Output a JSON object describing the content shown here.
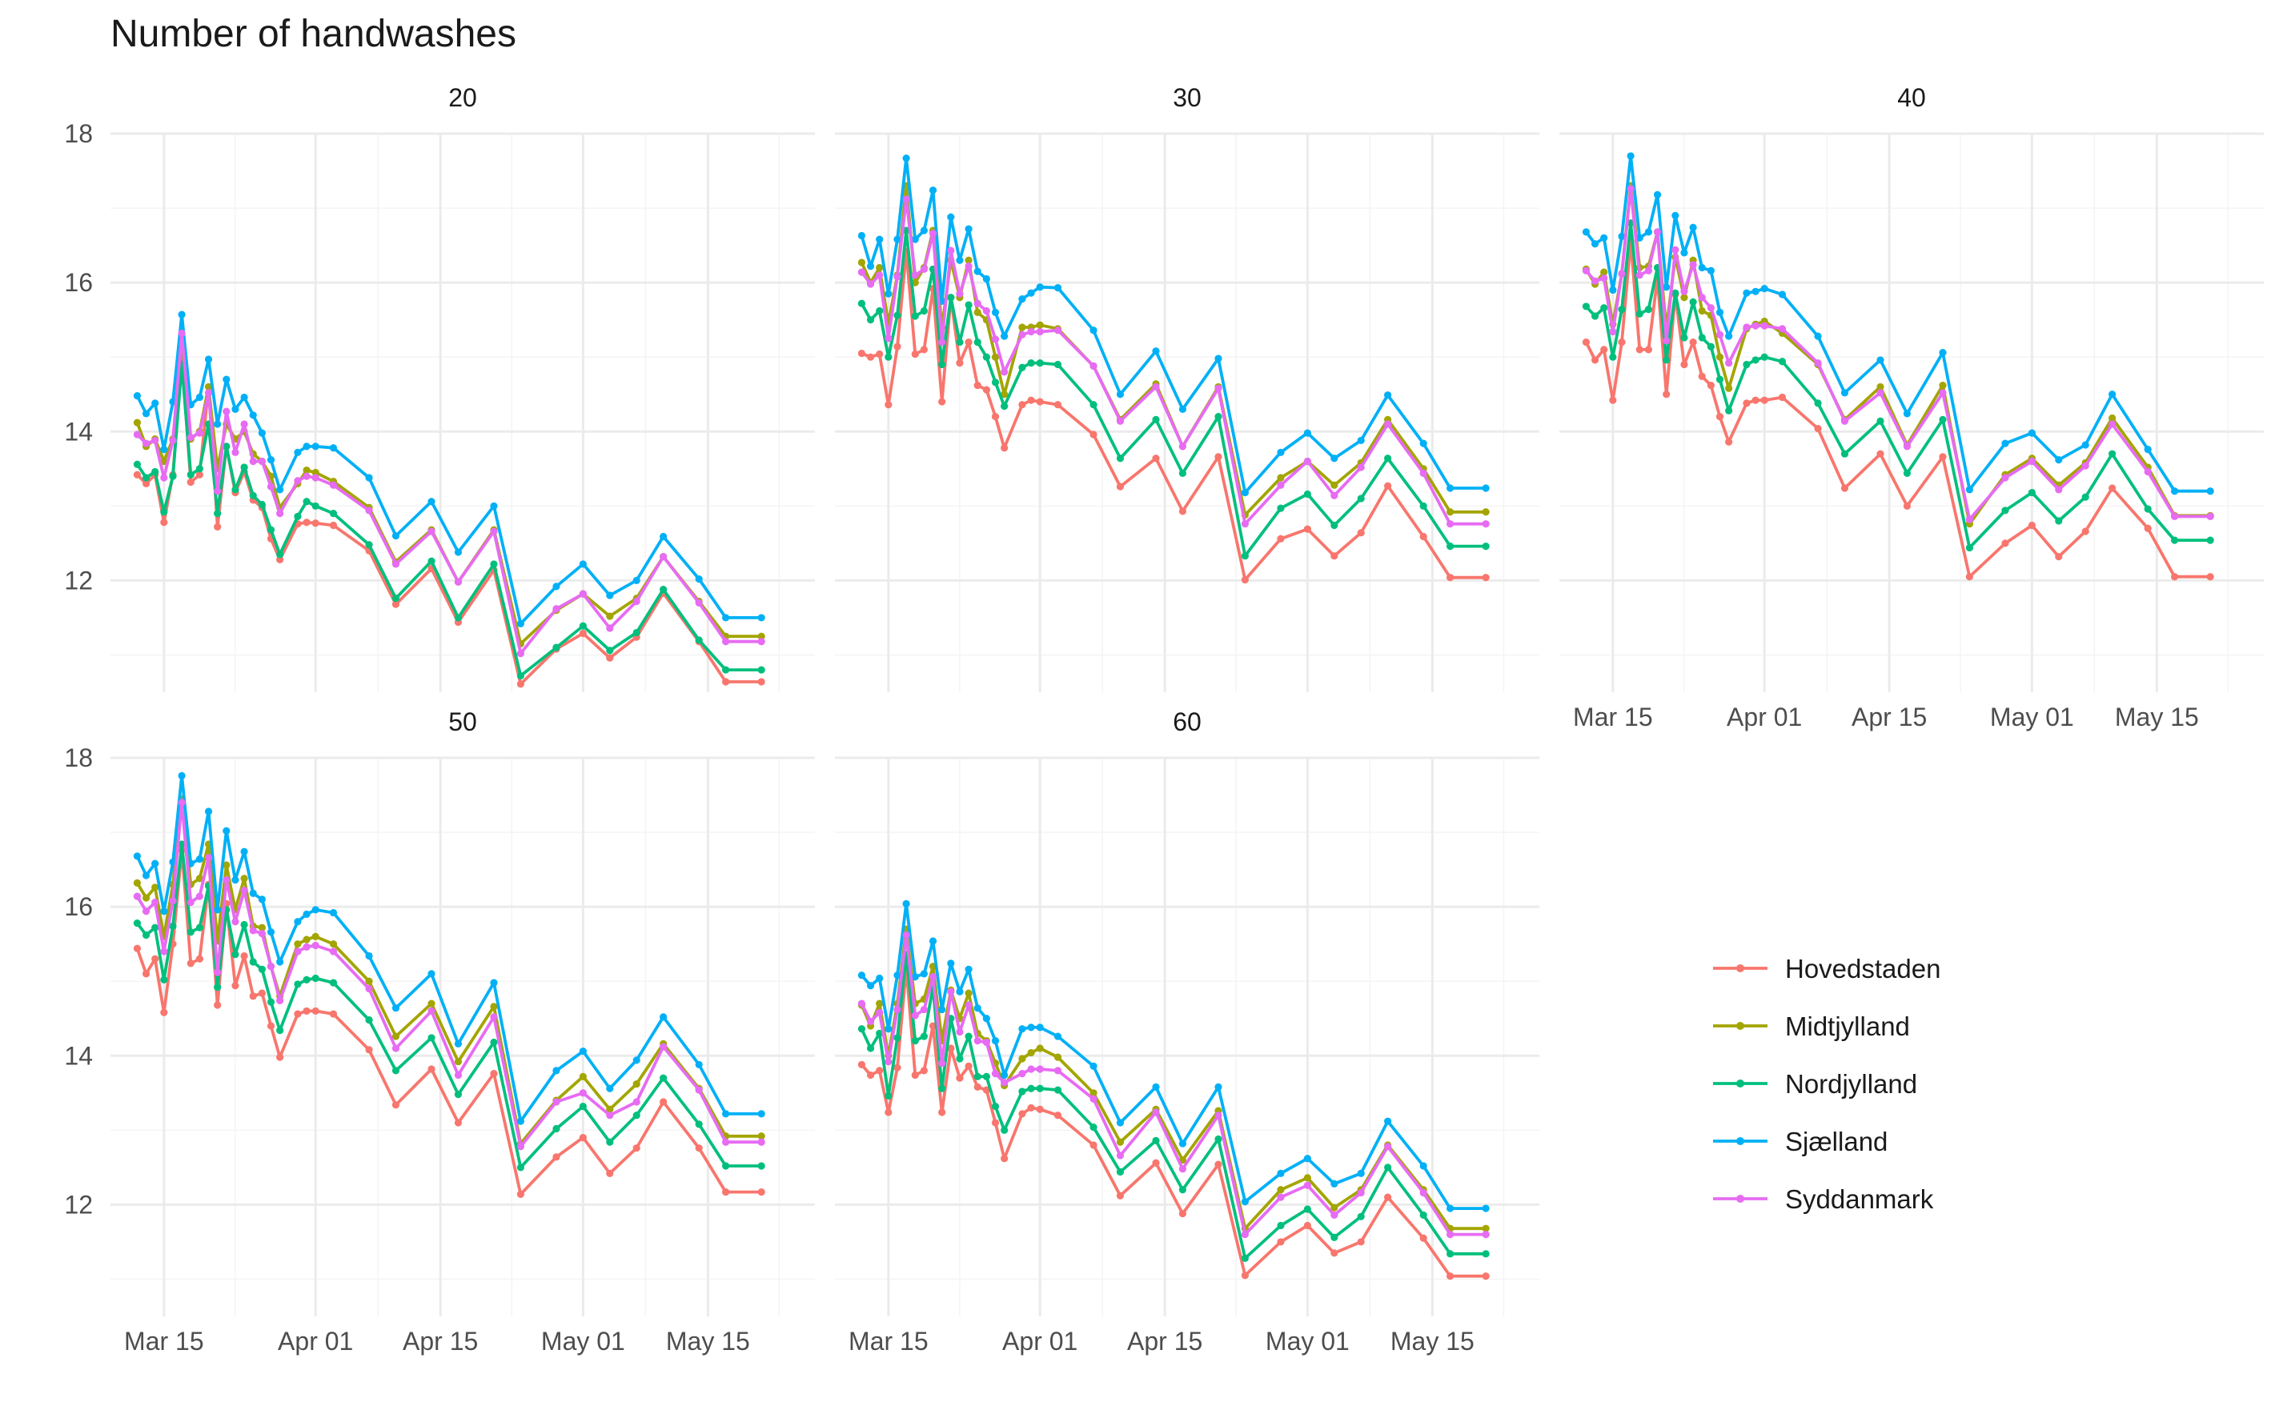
{
  "chart_data": {
    "type": "line",
    "title": "Number of handwashes",
    "xlabel": "",
    "ylabel": "",
    "facets": [
      "20",
      "30",
      "40",
      "50",
      "60"
    ],
    "x_ticks": [
      "Mar 15",
      "Apr 01",
      "Apr 15",
      "May 01",
      "May 15"
    ],
    "y_ticks": [
      "12",
      "14",
      "16",
      "18"
    ],
    "ylim": [
      10.5,
      18
    ],
    "xlim": [
      "2020-03-09",
      "2020-05-27"
    ],
    "grid": true,
    "legend_position": "right",
    "dates": [
      "2020-03-12",
      "2020-03-13",
      "2020-03-14",
      "2020-03-15",
      "2020-03-16",
      "2020-03-17",
      "2020-03-18",
      "2020-03-19",
      "2020-03-20",
      "2020-03-21",
      "2020-03-22",
      "2020-03-23",
      "2020-03-24",
      "2020-03-25",
      "2020-03-26",
      "2020-03-27",
      "2020-03-28",
      "2020-03-30",
      "2020-03-31",
      "2020-04-01",
      "2020-04-03",
      "2020-04-07",
      "2020-04-10",
      "2020-04-14",
      "2020-04-17",
      "2020-04-21",
      "2020-04-24",
      "2020-04-28",
      "2020-05-01",
      "2020-05-04",
      "2020-05-07",
      "2020-05-10",
      "2020-05-14",
      "2020-05-17",
      "2020-05-21"
    ],
    "series": [
      {
        "name": "Hovedstaden",
        "color": "#f8766d"
      },
      {
        "name": "Midtjylland",
        "color": "#a3a500"
      },
      {
        "name": "Nordjylland",
        "color": "#00bf7d"
      },
      {
        "name": "Sjælland",
        "color": "#00b0f6"
      },
      {
        "name": "Syddanmark",
        "color": "#e76bf3"
      }
    ],
    "values": {
      "20": {
        "Hovedstaden": [
          13.42,
          13.3,
          13.42,
          12.78,
          13.42,
          15.0,
          13.32,
          13.42,
          14.6,
          12.72,
          13.8,
          13.18,
          13.46,
          13.08,
          12.98,
          12.56,
          12.28,
          12.76,
          12.78,
          12.77,
          12.74,
          12.4,
          11.68,
          12.16,
          11.44,
          12.14,
          10.61,
          11.08,
          11.29,
          10.96,
          11.24,
          11.83,
          11.18,
          10.64,
          10.64
        ],
        "Midtjylland": [
          14.12,
          13.8,
          13.9,
          13.6,
          13.9,
          15.05,
          13.9,
          14.0,
          14.6,
          13.5,
          14.1,
          13.9,
          14.0,
          13.7,
          13.6,
          13.4,
          12.98,
          13.3,
          13.48,
          13.45,
          13.33,
          12.98,
          12.25,
          12.68,
          11.98,
          12.68,
          11.15,
          11.6,
          11.82,
          11.52,
          11.76,
          12.32,
          11.72,
          11.25,
          11.25
        ],
        "Nordjylland": [
          13.56,
          13.38,
          13.46,
          12.92,
          13.4,
          14.9,
          13.42,
          13.5,
          14.1,
          12.9,
          13.8,
          13.22,
          13.52,
          13.14,
          13.02,
          12.68,
          12.35,
          12.86,
          13.06,
          13.0,
          12.9,
          12.48,
          11.76,
          12.26,
          11.5,
          12.22,
          10.72,
          11.1,
          11.39,
          11.06,
          11.3,
          11.88,
          11.2,
          10.8,
          10.8
        ],
        "Sjælland": [
          14.48,
          14.24,
          14.38,
          13.76,
          14.4,
          15.57,
          14.36,
          14.46,
          14.97,
          14.1,
          14.7,
          14.3,
          14.46,
          14.22,
          13.98,
          13.62,
          13.22,
          13.72,
          13.8,
          13.8,
          13.78,
          13.38,
          12.6,
          13.06,
          12.38,
          13.0,
          11.42,
          11.92,
          12.22,
          11.8,
          12.0,
          12.59,
          12.02,
          11.5,
          11.5
        ],
        "Syddanmark": [
          13.96,
          13.84,
          13.88,
          13.38,
          13.88,
          15.32,
          13.92,
          13.98,
          14.52,
          13.2,
          14.27,
          13.72,
          14.1,
          13.6,
          13.6,
          13.26,
          12.9,
          13.34,
          13.4,
          13.38,
          13.28,
          12.94,
          12.22,
          12.66,
          11.98,
          12.66,
          11.02,
          11.62,
          11.82,
          11.36,
          11.72,
          12.32,
          11.7,
          11.18,
          11.18
        ]
      },
      "30": {
        "Hovedstaden": [
          15.05,
          15.0,
          15.04,
          14.36,
          15.14,
          16.42,
          15.04,
          15.1,
          15.92,
          14.4,
          15.8,
          14.92,
          15.2,
          14.62,
          14.56,
          14.2,
          13.78,
          14.36,
          14.42,
          14.4,
          14.36,
          13.96,
          13.26,
          13.64,
          12.93,
          13.66,
          12.01,
          12.56,
          12.69,
          12.33,
          12.64,
          13.27,
          12.59,
          12.04,
          12.04
        ],
        "Midtjylland": [
          16.27,
          16.0,
          16.2,
          15.45,
          16.1,
          17.3,
          16.0,
          16.2,
          16.7,
          15.4,
          16.3,
          15.8,
          16.3,
          15.6,
          15.5,
          15.0,
          14.5,
          15.4,
          15.4,
          15.43,
          15.38,
          14.88,
          14.16,
          14.64,
          13.8,
          14.6,
          12.88,
          13.38,
          13.6,
          13.28,
          13.58,
          14.16,
          13.5,
          12.92,
          12.92
        ],
        "Nordjylland": [
          15.72,
          15.5,
          15.62,
          15.0,
          15.56,
          16.7,
          15.55,
          15.62,
          16.18,
          14.9,
          15.8,
          15.2,
          15.7,
          15.2,
          15.0,
          14.66,
          14.34,
          14.86,
          14.92,
          14.92,
          14.9,
          14.36,
          13.64,
          14.16,
          13.44,
          14.2,
          12.33,
          12.97,
          13.16,
          12.74,
          13.1,
          13.64,
          13.0,
          12.46,
          12.46
        ],
        "Sjælland": [
          16.63,
          16.22,
          16.58,
          15.85,
          16.58,
          17.67,
          16.58,
          16.7,
          17.24,
          15.75,
          16.88,
          16.3,
          16.72,
          16.15,
          16.05,
          15.6,
          15.28,
          15.78,
          15.86,
          15.94,
          15.93,
          15.36,
          14.5,
          15.08,
          14.3,
          14.98,
          13.18,
          13.72,
          13.98,
          13.64,
          13.88,
          14.49,
          13.84,
          13.24,
          13.24
        ],
        "Syddanmark": [
          16.14,
          15.98,
          16.1,
          15.25,
          16.08,
          17.12,
          16.1,
          16.18,
          16.66,
          15.2,
          16.43,
          15.85,
          16.22,
          15.72,
          15.62,
          15.24,
          14.8,
          15.3,
          15.34,
          15.34,
          15.36,
          14.88,
          14.14,
          14.6,
          13.8,
          14.58,
          12.76,
          13.28,
          13.6,
          13.14,
          13.52,
          14.1,
          13.44,
          12.76,
          12.76
        ]
      },
      "40": {
        "Hovedstaden": [
          15.2,
          14.96,
          15.1,
          14.42,
          15.2,
          16.55,
          15.1,
          15.1,
          16.06,
          14.5,
          15.84,
          14.9,
          15.2,
          14.74,
          14.62,
          14.2,
          13.86,
          14.38,
          14.42,
          14.42,
          14.46,
          14.04,
          13.24,
          13.7,
          13.0,
          13.66,
          12.05,
          12.5,
          12.74,
          12.32,
          12.66,
          13.24,
          12.7,
          12.05,
          12.05
        ],
        "Midtjylland": [
          16.18,
          15.98,
          16.14,
          15.44,
          16.12,
          17.3,
          16.2,
          16.22,
          16.68,
          15.38,
          16.34,
          15.8,
          16.3,
          15.62,
          15.56,
          15.0,
          14.58,
          15.38,
          15.44,
          15.48,
          15.32,
          14.9,
          14.16,
          14.6,
          13.82,
          14.62,
          12.76,
          13.42,
          13.64,
          13.28,
          13.58,
          14.18,
          13.52,
          12.87,
          12.87
        ],
        "Nordjylland": [
          15.68,
          15.55,
          15.66,
          15.0,
          15.64,
          16.8,
          15.58,
          15.64,
          16.2,
          14.96,
          15.86,
          15.26,
          15.74,
          15.26,
          15.14,
          14.7,
          14.28,
          14.9,
          14.96,
          15.0,
          14.94,
          14.38,
          13.7,
          14.14,
          13.44,
          14.16,
          12.44,
          12.94,
          13.18,
          12.8,
          13.12,
          13.7,
          12.96,
          12.54,
          12.54
        ],
        "Sjælland": [
          16.68,
          16.52,
          16.6,
          15.9,
          16.62,
          17.7,
          16.6,
          16.68,
          17.18,
          15.94,
          16.9,
          16.4,
          16.74,
          16.2,
          16.16,
          15.6,
          15.28,
          15.86,
          15.88,
          15.92,
          15.84,
          15.28,
          14.52,
          14.96,
          14.24,
          15.06,
          13.22,
          13.84,
          13.98,
          13.62,
          13.82,
          14.5,
          13.76,
          13.2,
          13.2
        ],
        "Syddanmark": [
          16.16,
          16.02,
          16.06,
          15.34,
          16.12,
          17.26,
          16.1,
          16.16,
          16.68,
          15.22,
          16.44,
          15.88,
          16.24,
          15.8,
          15.66,
          15.3,
          14.92,
          15.4,
          15.42,
          15.42,
          15.38,
          14.92,
          14.14,
          14.52,
          13.8,
          14.52,
          12.82,
          13.38,
          13.6,
          13.22,
          13.54,
          14.1,
          13.46,
          12.86,
          12.86
        ]
      },
      "50": {
        "Hovedstaden": [
          15.44,
          15.1,
          15.3,
          14.58,
          15.5,
          16.76,
          15.24,
          15.3,
          16.3,
          14.68,
          16.04,
          14.94,
          15.34,
          14.8,
          14.84,
          14.4,
          13.98,
          14.56,
          14.6,
          14.6,
          14.56,
          14.08,
          13.34,
          13.82,
          13.1,
          13.76,
          12.14,
          12.64,
          12.9,
          12.42,
          12.76,
          13.38,
          12.76,
          12.17,
          12.17
        ],
        "Midtjylland": [
          16.32,
          16.12,
          16.26,
          15.6,
          16.3,
          17.45,
          16.3,
          16.38,
          16.84,
          15.54,
          16.56,
          15.96,
          16.38,
          15.74,
          15.72,
          15.2,
          14.8,
          15.5,
          15.56,
          15.6,
          15.5,
          15.0,
          14.26,
          14.7,
          13.92,
          14.66,
          12.82,
          13.4,
          13.72,
          13.28,
          13.62,
          14.16,
          13.56,
          12.92,
          12.92
        ],
        "Nordjylland": [
          15.78,
          15.62,
          15.72,
          15.02,
          15.74,
          16.84,
          15.66,
          15.72,
          16.28,
          14.92,
          15.96,
          15.36,
          15.76,
          15.26,
          15.16,
          14.72,
          14.34,
          14.96,
          15.02,
          15.04,
          14.98,
          14.48,
          13.8,
          14.24,
          13.48,
          14.18,
          12.5,
          13.02,
          13.32,
          12.84,
          13.2,
          13.7,
          13.08,
          12.52,
          12.52
        ],
        "Sjælland": [
          16.68,
          16.42,
          16.58,
          15.94,
          16.6,
          17.76,
          16.58,
          16.64,
          17.28,
          15.96,
          17.02,
          16.36,
          16.74,
          16.18,
          16.1,
          15.66,
          15.26,
          15.8,
          15.9,
          15.96,
          15.92,
          15.34,
          14.64,
          15.1,
          14.16,
          14.98,
          13.12,
          13.8,
          14.06,
          13.56,
          13.94,
          14.52,
          13.88,
          13.22,
          13.22
        ],
        "Syddanmark": [
          16.14,
          15.94,
          16.06,
          15.4,
          16.08,
          17.4,
          16.06,
          16.14,
          16.66,
          15.12,
          16.36,
          15.8,
          16.22,
          15.68,
          15.64,
          15.2,
          14.74,
          15.4,
          15.46,
          15.48,
          15.4,
          14.9,
          14.1,
          14.6,
          13.74,
          14.52,
          12.78,
          13.38,
          13.5,
          13.2,
          13.38,
          14.12,
          13.54,
          12.84,
          12.84
        ]
      },
      "60": {
        "Hovedstaden": [
          13.88,
          13.74,
          13.8,
          13.24,
          13.84,
          15.18,
          13.74,
          13.8,
          14.4,
          13.24,
          14.1,
          13.7,
          13.86,
          13.58,
          13.54,
          13.1,
          12.62,
          13.22,
          13.3,
          13.28,
          13.2,
          12.8,
          12.12,
          12.56,
          11.88,
          12.54,
          11.05,
          11.5,
          11.72,
          11.35,
          11.5,
          12.1,
          11.55,
          11.04,
          11.04
        ],
        "Midtjylland": [
          14.68,
          14.4,
          14.7,
          14.0,
          14.7,
          15.7,
          14.7,
          14.76,
          15.2,
          14.2,
          14.88,
          14.5,
          14.84,
          14.3,
          14.2,
          13.9,
          13.6,
          13.96,
          14.04,
          14.1,
          13.98,
          13.5,
          12.84,
          13.28,
          12.6,
          13.26,
          11.68,
          12.2,
          12.36,
          11.96,
          12.2,
          12.8,
          12.2,
          11.68,
          11.68
        ],
        "Nordjylland": [
          14.36,
          14.1,
          14.3,
          13.46,
          14.24,
          15.36,
          14.2,
          14.26,
          14.92,
          13.56,
          14.5,
          13.96,
          14.26,
          13.72,
          13.72,
          13.32,
          13.0,
          13.52,
          13.56,
          13.56,
          13.54,
          13.04,
          12.44,
          12.86,
          12.2,
          12.88,
          11.28,
          11.72,
          11.94,
          11.56,
          11.84,
          12.5,
          11.86,
          11.34,
          11.34
        ],
        "Sjælland": [
          15.08,
          14.94,
          15.04,
          14.36,
          15.08,
          16.04,
          15.06,
          15.1,
          15.54,
          14.62,
          15.24,
          14.86,
          15.16,
          14.64,
          14.5,
          14.2,
          13.74,
          14.36,
          14.38,
          14.38,
          14.26,
          13.86,
          13.1,
          13.58,
          12.82,
          13.58,
          12.04,
          12.42,
          12.62,
          12.28,
          12.42,
          13.12,
          12.52,
          11.95,
          11.95
        ],
        "Syddanmark": [
          14.7,
          14.46,
          14.58,
          13.92,
          14.62,
          15.62,
          14.54,
          14.62,
          15.06,
          13.9,
          14.86,
          14.32,
          14.68,
          14.2,
          14.18,
          13.76,
          13.64,
          13.76,
          13.82,
          13.82,
          13.8,
          13.42,
          12.66,
          13.24,
          12.48,
          13.2,
          11.6,
          12.1,
          12.26,
          11.86,
          12.16,
          12.78,
          12.16,
          11.6,
          11.6
        ]
      }
    }
  }
}
